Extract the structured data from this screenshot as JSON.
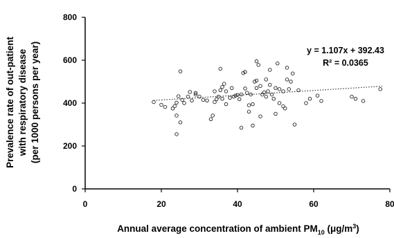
{
  "chart_data": {
    "type": "scatter",
    "title": "",
    "xlabel_parts": [
      "Annual average concentration of ambient PM",
      "10",
      " (μg/m",
      "3",
      ")"
    ],
    "ylabel_lines": [
      "Prevalence rate of out-patient",
      "with respiratory disease",
      "(per 1000 persons per year)"
    ],
    "xlim": [
      0,
      80
    ],
    "ylim": [
      0,
      800
    ],
    "xticks": [
      0,
      20,
      40,
      60,
      80
    ],
    "yticks": [
      0,
      200,
      400,
      600,
      800
    ],
    "grid": false,
    "trendline": {
      "style": "dotted",
      "slope": 1.107,
      "intercept": 392.43,
      "x_range": [
        18,
        78
      ]
    },
    "annotations": {
      "equation": "y = 1.107x + 392.43",
      "r_squared": "R² = 0.0365"
    },
    "colors": {
      "marker_stroke": "#222222",
      "axis": "#000000",
      "trendline": "#333333"
    },
    "points": [
      [
        18,
        405
      ],
      [
        20,
        392
      ],
      [
        21,
        382
      ],
      [
        23,
        375
      ],
      [
        23.5,
        386
      ],
      [
        24,
        402
      ],
      [
        24.5,
        432
      ],
      [
        24,
        342
      ],
      [
        24,
        255
      ],
      [
        25,
        310
      ],
      [
        25,
        548
      ],
      [
        25.5,
        415
      ],
      [
        26,
        400
      ],
      [
        27,
        430
      ],
      [
        27.5,
        452
      ],
      [
        28,
        412
      ],
      [
        29,
        447
      ],
      [
        29,
        440
      ],
      [
        30,
        430
      ],
      [
        31,
        415
      ],
      [
        32,
        412
      ],
      [
        33,
        325
      ],
      [
        33.5,
        342
      ],
      [
        34,
        405
      ],
      [
        34,
        455
      ],
      [
        34.5,
        418
      ],
      [
        35,
        430
      ],
      [
        35.5,
        560
      ],
      [
        35.5,
        460
      ],
      [
        36,
        420
      ],
      [
        36,
        475
      ],
      [
        36.5,
        490
      ],
      [
        37,
        455
      ],
      [
        37,
        395
      ],
      [
        38,
        425
      ],
      [
        38.5,
        470
      ],
      [
        39,
        430
      ],
      [
        39.5,
        435
      ],
      [
        40,
        438
      ],
      [
        40.5,
        418
      ],
      [
        41,
        440
      ],
      [
        41,
        285
      ],
      [
        41.5,
        540
      ],
      [
        42,
        545
      ],
      [
        42,
        468
      ],
      [
        42.5,
        448
      ],
      [
        43,
        360
      ],
      [
        43,
        390
      ],
      [
        43.5,
        440
      ],
      [
        44,
        295
      ],
      [
        44,
        395
      ],
      [
        44.5,
        500
      ],
      [
        45,
        470
      ],
      [
        45,
        505
      ],
      [
        45,
        595
      ],
      [
        45.5,
        578
      ],
      [
        46,
        338
      ],
      [
        46,
        480
      ],
      [
        46.5,
        440
      ],
      [
        47,
        450
      ],
      [
        47.5,
        430
      ],
      [
        47.5,
        510
      ],
      [
        48,
        455
      ],
      [
        48.5,
        555
      ],
      [
        48.5,
        485
      ],
      [
        49,
        440
      ],
      [
        49.5,
        420
      ],
      [
        50,
        470
      ],
      [
        50,
        350
      ],
      [
        50.5,
        585
      ],
      [
        51,
        465
      ],
      [
        51,
        400
      ],
      [
        52,
        455
      ],
      [
        52,
        385
      ],
      [
        52.5,
        375
      ],
      [
        53,
        510
      ],
      [
        53,
        565
      ],
      [
        53.5,
        465
      ],
      [
        54,
        500
      ],
      [
        54.5,
        538
      ],
      [
        55,
        300
      ],
      [
        56,
        460
      ],
      [
        58,
        400
      ],
      [
        59,
        420
      ],
      [
        61,
        435
      ],
      [
        62,
        410
      ],
      [
        70,
        430
      ],
      [
        71,
        420
      ],
      [
        73,
        410
      ],
      [
        77.5,
        465
      ]
    ]
  }
}
